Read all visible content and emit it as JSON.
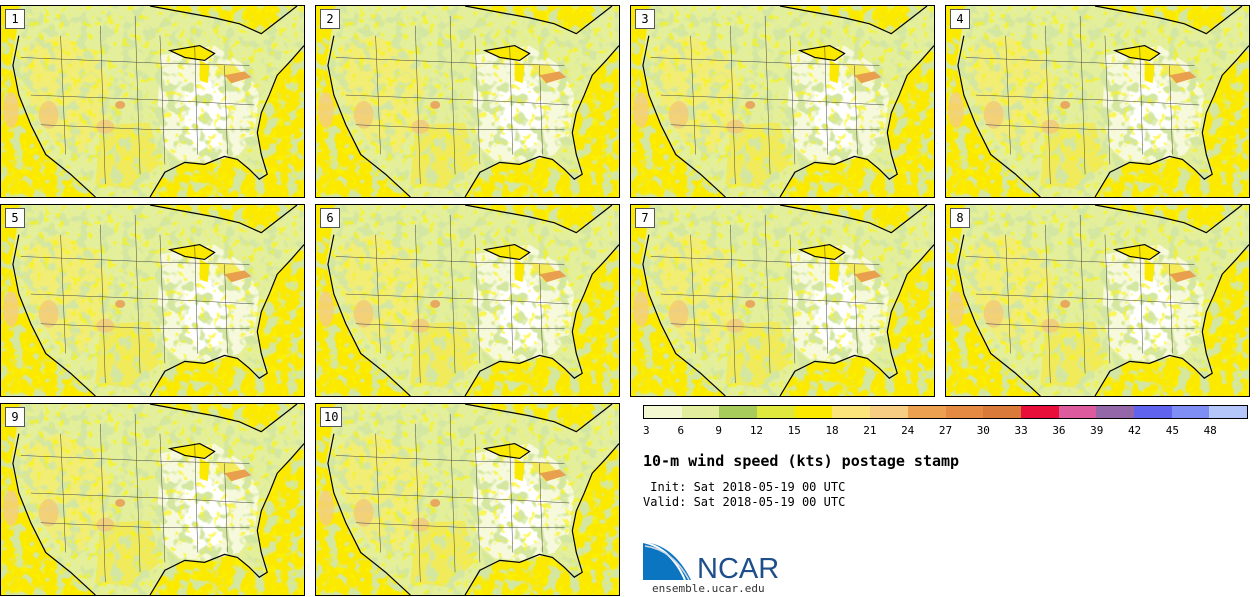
{
  "panels": [
    {
      "label": "1"
    },
    {
      "label": "2"
    },
    {
      "label": "3"
    },
    {
      "label": "4"
    },
    {
      "label": "5"
    },
    {
      "label": "6"
    },
    {
      "label": "7"
    },
    {
      "label": "8"
    },
    {
      "label": "9"
    },
    {
      "label": "10"
    }
  ],
  "colorbar": {
    "colors": [
      "#f4f8d0",
      "#e2ee9e",
      "#a8cc5c",
      "#dfe93d",
      "#fbe900",
      "#fce57a",
      "#f6cd82",
      "#eca050",
      "#e48a42",
      "#d97a3a",
      "#e8103a",
      "#de5a9e",
      "#9468a8",
      "#6063ee",
      "#7e8ef4",
      "#b4c6fa"
    ],
    "ticks": [
      "3",
      "6",
      "9",
      "12",
      "15",
      "18",
      "21",
      "24",
      "27",
      "30",
      "33",
      "36",
      "39",
      "42",
      "45",
      "48"
    ]
  },
  "title": "10-m wind speed (kts) postage stamp",
  "init": " Init: Sat 2018-05-19 00 UTC",
  "valid": "Valid: Sat 2018-05-19 00 UTC",
  "logo": {
    "name": "NCAR",
    "url": "ensemble.ucar.edu",
    "color": "#1f4f8a"
  }
}
